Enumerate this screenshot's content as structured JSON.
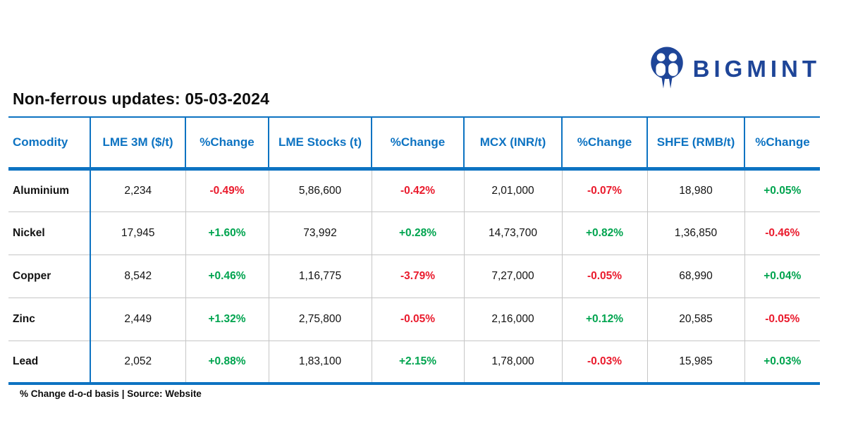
{
  "brand": {
    "name": "BIGMINT"
  },
  "colors": {
    "blue": "#0d73c2",
    "navy": "#1e4598",
    "pos": "#00a44f",
    "neg": "#ea1b2d",
    "grid": "#c6c6c6"
  },
  "chart_data": {
    "type": "table",
    "title": "Non-ferrous updates: 05-03-2024",
    "footnote": "% Change d-o-d basis | Source: Website",
    "columns": [
      "Comodity",
      "LME 3M ($/t)",
      "%Change",
      "LME Stocks (t)",
      "%Change",
      "MCX (INR/t)",
      "%Change",
      "SHFE (RMB/t)",
      "%Change"
    ],
    "rows": [
      [
        "Aluminium",
        "2,234",
        "-0.49%",
        "5,86,600",
        "-0.42%",
        "2,01,000",
        "-0.07%",
        "18,980",
        "+0.05%"
      ],
      [
        "Nickel",
        "17,945",
        "+1.60%",
        "73,992",
        "+0.28%",
        "14,73,700",
        "+0.82%",
        "1,36,850",
        "-0.46%"
      ],
      [
        "Copper",
        "8,542",
        "+0.46%",
        "1,16,775",
        "-3.79%",
        "7,27,000",
        "-0.05%",
        "68,990",
        "+0.04%"
      ],
      [
        "Zinc",
        "2,449",
        "+1.32%",
        "2,75,800",
        "-0.05%",
        "2,16,000",
        "+0.12%",
        "20,585",
        "-0.05%"
      ],
      [
        "Lead",
        "2,052",
        "+0.88%",
        "1,83,100",
        "+2.15%",
        "1,78,000",
        "-0.03%",
        "15,985",
        "+0.03%"
      ]
    ]
  }
}
